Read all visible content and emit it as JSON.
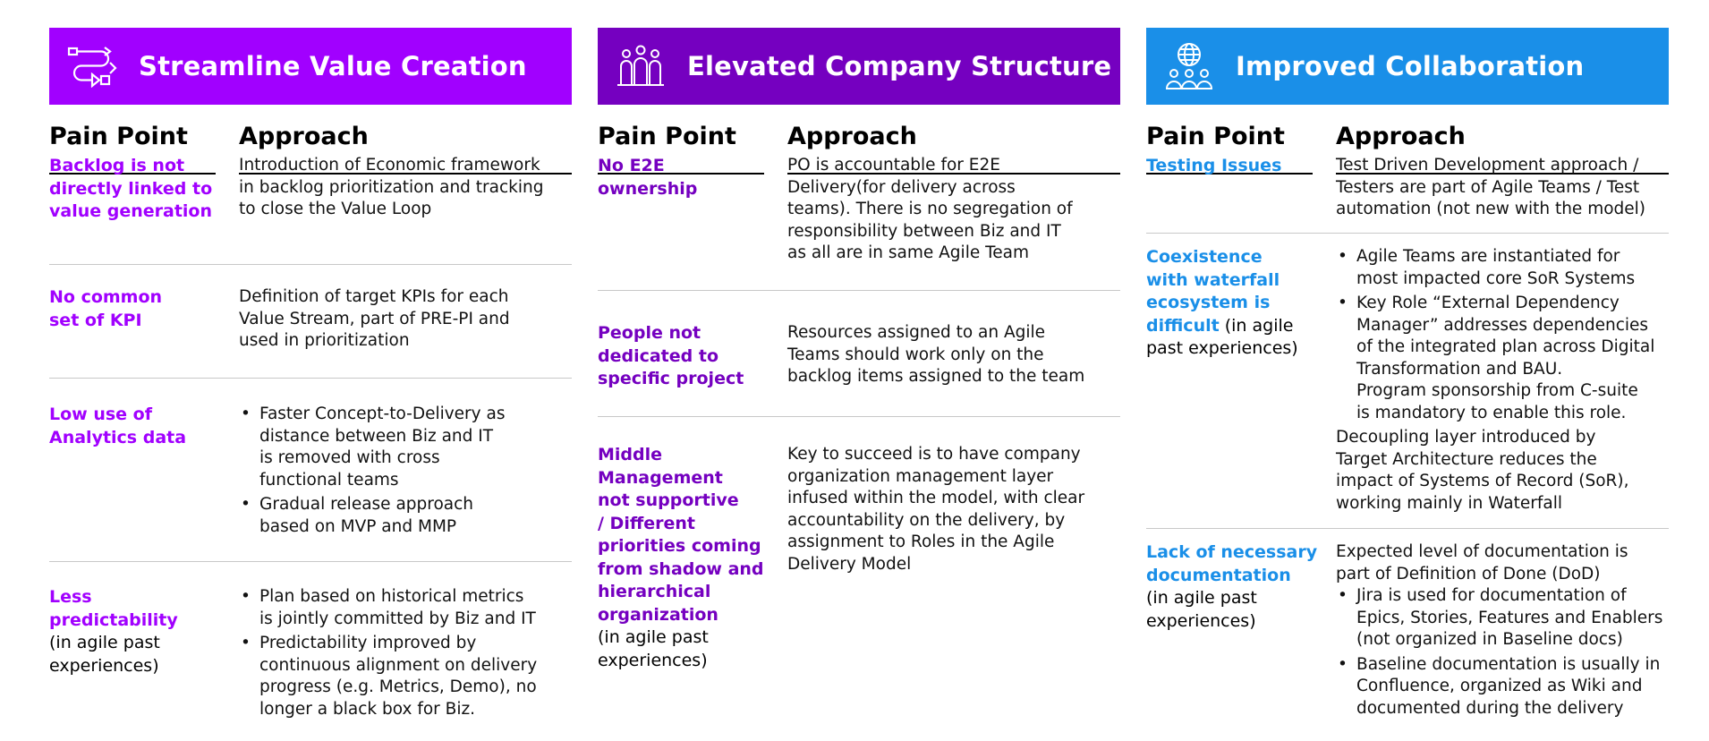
{
  "colors": {
    "banner1": "#a100ff",
    "banner2": "#7500c0",
    "banner3": "#1a8fe8"
  },
  "columns": [
    {
      "title": "Streamline Value Creation",
      "icon": "workflow-icon",
      "pain_header": "Pain Point",
      "approach_header": "Approach",
      "rows": [
        {
          "pain": [
            "Backlog is not",
            "directly linked to",
            "value generation"
          ],
          "pain_sub": [],
          "intro": [
            "Introduction of Economic framework",
            "in backlog prioritization and tracking",
            "to close the Value Loop"
          ],
          "bullets": [],
          "outro": []
        },
        {
          "pain": [
            "No common",
            "set of KPI"
          ],
          "pain_sub": [],
          "intro": [
            "Definition of target KPIs for each",
            "Value Stream, part of PRE-PI and",
            "used in prioritization"
          ],
          "bullets": [],
          "outro": []
        },
        {
          "pain": [
            "Low use of",
            "Analytics data"
          ],
          "pain_sub": [],
          "intro": [],
          "bullets": [
            [
              "Faster Concept-to-Delivery as",
              "distance between Biz and IT",
              "is removed with cross",
              "functional teams"
            ],
            [
              "Gradual release approach",
              "based on MVP and MMP"
            ]
          ],
          "outro": []
        },
        {
          "pain": [
            "Less",
            "predictability"
          ],
          "pain_sub": [
            "(in agile past",
            "experiences)"
          ],
          "intro": [],
          "bullets": [
            [
              "Plan based on historical metrics",
              "is jointly committed by Biz and IT"
            ],
            [
              "Predictability improved by",
              "continuous alignment on delivery",
              "progress (e.g. Metrics, Demo), no",
              "longer a black box for Biz."
            ]
          ],
          "outro": []
        }
      ]
    },
    {
      "title": "Elevated Company Structure",
      "icon": "team-people-icon",
      "pain_header": "Pain Point",
      "approach_header": "Approach",
      "rows": [
        {
          "pain": [
            "No E2E",
            "ownership"
          ],
          "pain_sub": [],
          "intro": [
            "PO is accountable for E2E",
            "Delivery(for delivery across",
            "teams). There is no segregation of",
            "responsibility between Biz and IT",
            "as all are in same Agile Team"
          ],
          "bullets": [],
          "outro": []
        },
        {
          "pain": [
            "People not",
            "dedicated to",
            "specific project"
          ],
          "pain_sub": [],
          "intro": [
            "Resources assigned to an Agile",
            "Teams should work only on the",
            "backlog items assigned to the team"
          ],
          "bullets": [],
          "outro": []
        },
        {
          "pain": [
            "Middle",
            "Management",
            "not supportive",
            "/ Different",
            "priorities coming",
            "from shadow and",
            "hierarchical",
            "organization"
          ],
          "pain_sub": [
            "(in agile past",
            "experiences)"
          ],
          "intro": [
            "Key to succeed is to have company",
            "organization management layer",
            "infused within the model, with clear",
            "accountability on the delivery, by",
            "assignment to Roles in the Agile",
            "Delivery Model"
          ],
          "bullets": [],
          "outro": []
        }
      ]
    },
    {
      "title": "Improved Collaboration",
      "icon": "globe-people-icon",
      "pain_header": "Pain Point",
      "approach_header": "Approach",
      "rows": [
        {
          "pain": [
            "Testing Issues"
          ],
          "pain_sub": [],
          "intro": [
            "Test Driven Development approach /",
            "Testers are part of Agile Teams / Test",
            "automation (not new with the model)"
          ],
          "bullets": [],
          "outro": []
        },
        {
          "pain": [
            "Coexistence",
            "with waterfall",
            "ecosystem is",
            "difficult"
          ],
          "pain_sub_inline": " (in agile",
          "pain_sub": [
            "past experiences)"
          ],
          "intro": [],
          "bullets": [
            [
              "Agile Teams are instantiated for",
              "most impacted core SoR Systems"
            ],
            [
              "Key Role “External Dependency",
              "Manager” addresses dependencies",
              "of the integrated plan across Digital",
              "Transformation and BAU.",
              "Program sponsorship from C-suite",
              "is mandatory to enable this role."
            ]
          ],
          "outro": [
            "Decoupling layer introduced by",
            "Target Architecture reduces the",
            "impact of Systems of Record (SoR),",
            "working mainly in Waterfall"
          ]
        },
        {
          "pain": [
            "Lack of necessary",
            "documentation"
          ],
          "pain_sub": [
            "(in agile past",
            "experiences)"
          ],
          "intro": [
            "Expected level of documentation is",
            "part of Definition of Done (DoD)"
          ],
          "bullets": [
            [
              "Jira is used for documentation of",
              "Epics, Stories, Features and Enablers",
              "(not organized in Baseline docs)"
            ],
            [
              "Baseline documentation is usually in",
              "Confluence, organized as Wiki and",
              "documented during the delivery"
            ]
          ],
          "outro": []
        }
      ]
    }
  ]
}
